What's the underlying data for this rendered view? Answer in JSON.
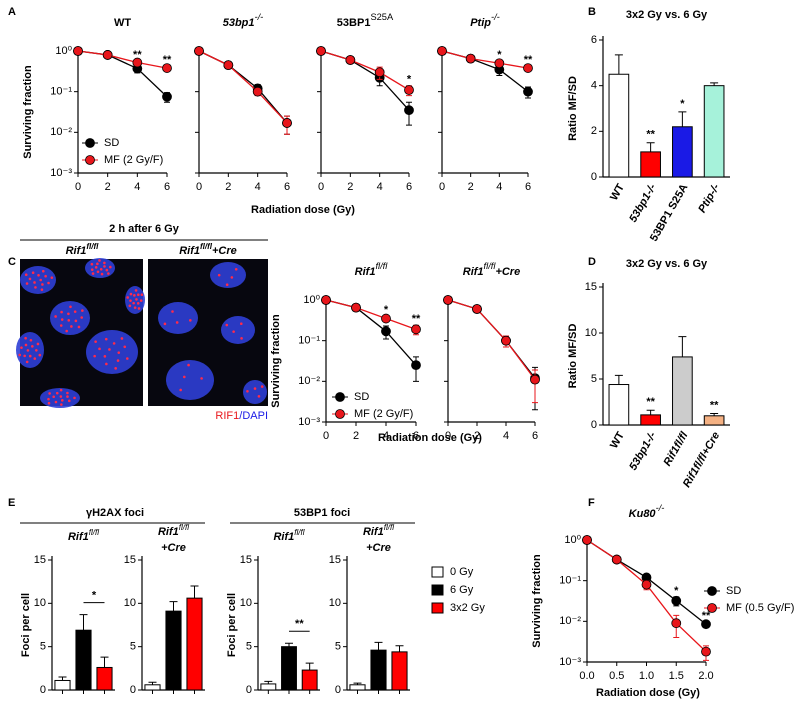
{
  "panel_labels": [
    "A",
    "B",
    "C",
    "D",
    "E",
    "F"
  ],
  "micrograph": {
    "title": "2 h after 6 Gy",
    "panels": [
      {
        "label": "Rif1",
        "label_sup": "fl/fl"
      },
      {
        "label": "Rif1",
        "label_sup": "fl/fl",
        "label_suffix": "+Cre"
      }
    ],
    "caption": [
      "RIF1",
      "/DAPI"
    ]
  },
  "foci_legend": [
    {
      "name": "0 Gy",
      "color": "#ffffff"
    },
    {
      "name": "6 Gy",
      "color": "#000000"
    },
    {
      "name": "3x2 Gy",
      "color": "#ff0000"
    }
  ],
  "chart_data": [
    {
      "type": "line",
      "title": "WT",
      "ylabel": "Surviving fraction",
      "xlabel": "Radiation dose (Gy)",
      "x": [
        0,
        2,
        4,
        6
      ],
      "xlim": [
        0,
        6
      ],
      "xticks": [
        0,
        2,
        4,
        6
      ],
      "ylog": true,
      "ylim": [
        0.001,
        1
      ],
      "yticks": [
        {
          "value": 1,
          "label": "10⁰"
        },
        {
          "value": 0.1,
          "label": "10⁻¹"
        },
        {
          "value": 0.01,
          "label": "10⁻²"
        },
        {
          "value": 0.001,
          "label": "10⁻³"
        }
      ],
      "legend": true,
      "series": [
        {
          "name": "SD",
          "color": "#000000",
          "values": [
            1,
            0.8,
            0.37,
            0.075
          ],
          "errors": [
            0,
            0.05,
            0.08,
            0.02
          ]
        },
        {
          "name": "MF (2 Gy/F)",
          "color": "#e8161b",
          "values": [
            1,
            0.8,
            0.52,
            0.38
          ],
          "errors": [
            0,
            0.05,
            0.05,
            0.04
          ]
        }
      ],
      "annotations": [
        {
          "x": 4,
          "text": "**"
        },
        {
          "x": 6,
          "text": "**"
        }
      ],
      "annotation_color": "#e8161b"
    },
    {
      "type": "line",
      "title": "53bp1",
      "title_sup": "-/-",
      "title_italic": true,
      "x": [
        0,
        2,
        4,
        6
      ],
      "xlim": [
        0,
        6
      ],
      "xticks": [
        0,
        2,
        4,
        6
      ],
      "ylog": true,
      "ylim": [
        0.001,
        1
      ],
      "yticks": [
        1,
        0.1,
        0.01,
        0.001
      ],
      "ytick_labels": false,
      "series": [
        {
          "color": "#000000",
          "values": [
            1,
            0.45,
            0.12,
            0.017
          ],
          "errors": [
            0,
            0.04,
            0.03,
            0.008
          ]
        },
        {
          "color": "#e8161b",
          "values": [
            1,
            0.45,
            0.1,
            0.017
          ],
          "errors": [
            0,
            0.04,
            0.02,
            0.008
          ]
        }
      ]
    },
    {
      "type": "line",
      "title": "53BP1",
      "title_sup": "S25A",
      "x": [
        0,
        2,
        4,
        6
      ],
      "xlim": [
        0,
        6
      ],
      "xticks": [
        0,
        2,
        4,
        6
      ],
      "ylog": true,
      "ylim": [
        0.001,
        1
      ],
      "yticks": [
        1,
        0.1,
        0.01,
        0.001
      ],
      "ytick_labels": false,
      "series": [
        {
          "color": "#000000",
          "values": [
            1,
            0.6,
            0.22,
            0.035
          ],
          "errors": [
            0,
            0.05,
            0.08,
            0.02
          ]
        },
        {
          "color": "#e8161b",
          "values": [
            1,
            0.6,
            0.3,
            0.11
          ],
          "errors": [
            0,
            0.05,
            0.1,
            0.03
          ]
        }
      ],
      "annotations": [
        {
          "x": 6,
          "text": "*"
        }
      ],
      "annotation_color": "#e8161b"
    },
    {
      "type": "line",
      "title": "Ptip",
      "title_sup": "-/-",
      "title_italic": true,
      "x": [
        0,
        2,
        4,
        6
      ],
      "xlim": [
        0,
        6
      ],
      "xticks": [
        0,
        2,
        4,
        6
      ],
      "ylog": true,
      "ylim": [
        0.001,
        1
      ],
      "yticks": [
        1,
        0.1,
        0.01,
        0.001
      ],
      "ytick_labels": false,
      "series": [
        {
          "color": "#000000",
          "values": [
            1,
            0.65,
            0.35,
            0.1
          ],
          "errors": [
            0,
            0.05,
            0.1,
            0.03
          ]
        },
        {
          "color": "#e8161b",
          "values": [
            1,
            0.65,
            0.5,
            0.38
          ],
          "errors": [
            0,
            0.05,
            0.06,
            0.05
          ]
        }
      ],
      "annotations": [
        {
          "x": 4,
          "text": "*"
        },
        {
          "x": 6,
          "text": "**"
        }
      ],
      "annotation_color": "#e8161b"
    },
    {
      "type": "bar",
      "title": "3x2 Gy vs. 6 Gy",
      "ylabel": "Ratio MF/SD",
      "categories": [
        "WT",
        "53bp1-/-",
        "53BP1 S25A",
        "Ptip-/-"
      ],
      "category_italic": [
        false,
        true,
        false,
        true
      ],
      "values": [
        4.5,
        1.1,
        2.2,
        4.0
      ],
      "errors": [
        0.85,
        0.4,
        0.65,
        0.12
      ],
      "colors": [
        "#ffffff",
        "#ff0000",
        "#1a1ae6",
        "#a6f2da"
      ],
      "ylim": [
        0,
        6
      ],
      "yticks": [
        0,
        2,
        4,
        6
      ],
      "annotations": [
        {
          "x": 1,
          "text": "**"
        },
        {
          "x": 2,
          "text": "*"
        }
      ],
      "annotation_color": "#000000"
    },
    {
      "type": "line",
      "title": "Rif1",
      "title_sup": "fl/fl",
      "title_italic": true,
      "ylabel": "Surviving fraction",
      "xlabel": "Radiation dose (Gy)",
      "x": [
        0,
        2,
        4,
        6
      ],
      "xlim": [
        0,
        6
      ],
      "xticks": [
        0,
        2,
        4,
        6
      ],
      "ylog": true,
      "ylim": [
        0.001,
        1
      ],
      "yticks": [
        {
          "value": 1,
          "label": "10⁰"
        },
        {
          "value": 0.1,
          "label": "10⁻¹"
        },
        {
          "value": 0.01,
          "label": "10⁻²"
        },
        {
          "value": 0.001,
          "label": "10⁻³"
        }
      ],
      "legend": true,
      "series": [
        {
          "name": "SD",
          "color": "#000000",
          "values": [
            1,
            0.65,
            0.17,
            0.025
          ],
          "errors": [
            0,
            0.05,
            0.06,
            0.015
          ]
        },
        {
          "name": "MF (2 Gy/F)",
          "color": "#e8161b",
          "values": [
            1,
            0.65,
            0.35,
            0.19
          ],
          "errors": [
            0,
            0.05,
            0.05,
            0.05
          ]
        }
      ],
      "annotations": [
        {
          "x": 4,
          "text": "*"
        },
        {
          "x": 6,
          "text": "**"
        }
      ],
      "annotation_color": "#e8161b"
    },
    {
      "type": "line",
      "title": "Rif1",
      "title_sup": "fl/fl",
      "title_suffix": "+Cre",
      "title_italic": true,
      "x": [
        0,
        2,
        4,
        6
      ],
      "xlim": [
        0,
        6
      ],
      "xticks": [
        0,
        2,
        4,
        6
      ],
      "ylog": true,
      "ylim": [
        0.001,
        1
      ],
      "yticks": [
        1,
        0.1,
        0.01,
        0.001
      ],
      "ytick_labels": false,
      "series": [
        {
          "color": "#000000",
          "values": [
            1,
            0.6,
            0.1,
            0.012
          ],
          "errors": [
            0,
            0.05,
            0.03,
            0.01
          ]
        },
        {
          "color": "#e8161b",
          "values": [
            1,
            0.6,
            0.1,
            0.011
          ],
          "errors": [
            0,
            0.05,
            0.03,
            0.008
          ]
        }
      ]
    },
    {
      "type": "bar",
      "title": "3x2 Gy vs. 6 Gy",
      "ylabel": "Ratio MF/SD",
      "categories": [
        "WT",
        "53bp1-/-",
        "Rif1fl/fl",
        "Rif1fl/fl+Cre"
      ],
      "category_italic": [
        false,
        true,
        true,
        true
      ],
      "values": [
        4.4,
        1.1,
        7.4,
        1.0
      ],
      "errors": [
        1.0,
        0.5,
        2.2,
        0.25
      ],
      "colors": [
        "#ffffff",
        "#ff0000",
        "#cccccc",
        "#f4b183"
      ],
      "ylim": [
        0,
        15
      ],
      "yticks": [
        0,
        5,
        10,
        15
      ],
      "annotations": [
        {
          "x": 1,
          "text": "**"
        },
        {
          "x": 3,
          "text": "**"
        }
      ],
      "annotation_color": "#000000"
    },
    {
      "type": "bar",
      "suptitle": "γH2AX foci",
      "title": "Rif1",
      "title_sup": "fl/fl",
      "title_italic": true,
      "ylabel": "Foci per cell",
      "categories": [
        null,
        null,
        null
      ],
      "values": [
        1.1,
        6.9,
        2.6
      ],
      "errors": [
        0.4,
        1.8,
        1.2
      ],
      "colors": [
        "#ffffff",
        "#000000",
        "#ff0000"
      ],
      "ylim": [
        0,
        15
      ],
      "yticks": [
        0,
        5,
        10,
        15
      ],
      "significance": {
        "between": [
          1,
          2
        ],
        "text": "*"
      }
    },
    {
      "type": "bar",
      "title": "Rif1",
      "title_sup": "fl/fl",
      "title_line2": "+Cre",
      "title_italic": true,
      "categories": [
        null,
        null,
        null
      ],
      "values": [
        0.6,
        9.1,
        10.6
      ],
      "errors": [
        0.3,
        1.1,
        1.4
      ],
      "colors": [
        "#ffffff",
        "#000000",
        "#ff0000"
      ],
      "ylim": [
        0,
        15
      ],
      "yticks": [
        0,
        5,
        10,
        15
      ]
    },
    {
      "type": "bar",
      "suptitle": "53BP1 foci",
      "title": "Rif1",
      "title_sup": "fl/fl",
      "title_italic": true,
      "ylabel": "Foci per cell",
      "categories": [
        null,
        null,
        null
      ],
      "values": [
        0.7,
        5.0,
        2.3
      ],
      "errors": [
        0.3,
        0.4,
        0.8
      ],
      "colors": [
        "#ffffff",
        "#000000",
        "#ff0000"
      ],
      "ylim": [
        0,
        15
      ],
      "yticks": [
        0,
        5,
        10,
        15
      ],
      "significance": {
        "between": [
          1,
          2
        ],
        "text": "**"
      }
    },
    {
      "type": "bar",
      "title": "Rif1",
      "title_sup": "fl/fl",
      "title_line2": "+Cre",
      "title_italic": true,
      "categories": [
        null,
        null,
        null
      ],
      "values": [
        0.6,
        4.6,
        4.4
      ],
      "errors": [
        0.2,
        0.9,
        0.7
      ],
      "colors": [
        "#ffffff",
        "#000000",
        "#ff0000"
      ],
      "ylim": [
        0,
        15
      ],
      "yticks": [
        0,
        5,
        10,
        15
      ]
    },
    {
      "type": "line",
      "title": "Ku80",
      "title_sup": "-/-",
      "title_italic": true,
      "ylabel": "Surviving fraction",
      "xlabel": "Radiation dose (Gy)",
      "x": [
        0,
        0.5,
        1,
        1.5,
        2
      ],
      "xlim": [
        0,
        2
      ],
      "xticks": [
        {
          "value": 0,
          "label": "0.0"
        },
        0.5,
        {
          "value": 1,
          "label": "1.0"
        },
        1.5,
        {
          "value": 2,
          "label": "2.0"
        }
      ],
      "ylog": true,
      "ylim": [
        0.001,
        1
      ],
      "yticks": [
        {
          "value": 1,
          "label": "10⁰"
        },
        {
          "value": 0.1,
          "label": "10⁻¹"
        },
        {
          "value": 0.01,
          "label": "10⁻²"
        },
        {
          "value": 0.001,
          "label": "10⁻³"
        }
      ],
      "legend": true,
      "series": [
        {
          "name": "SD",
          "color": "#000000",
          "values": [
            1,
            0.33,
            0.12,
            0.032,
            0.0085
          ],
          "errors": [
            0,
            0.03,
            0.02,
            0.008,
            0.001
          ]
        },
        {
          "name": "MF (0.5 Gy/F)",
          "color": "#e8161b",
          "values": [
            1,
            0.33,
            0.08,
            0.009,
            0.0018
          ],
          "errors": [
            0,
            0.03,
            0.02,
            0.005,
            0.0007
          ]
        }
      ],
      "annotations": [
        {
          "x": 1.5,
          "text": "*"
        },
        {
          "x": 2,
          "text": "**"
        }
      ],
      "annotation_color": "#e8161b"
    }
  ]
}
